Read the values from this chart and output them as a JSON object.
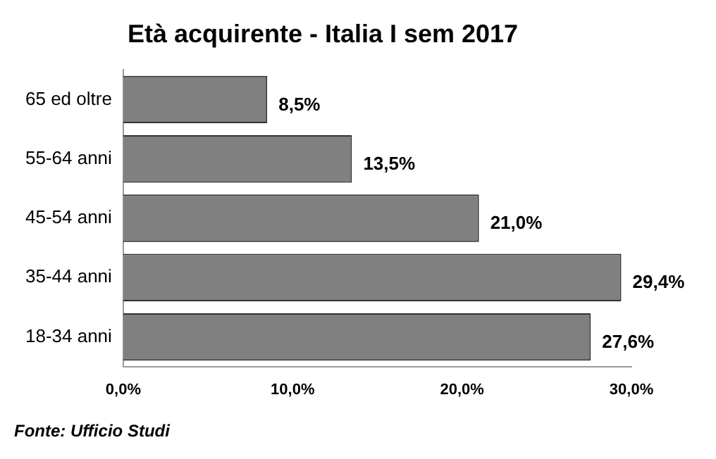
{
  "chart_data": {
    "type": "bar",
    "orientation": "horizontal",
    "title": "Età acquirente - Italia I sem 2017",
    "categories": [
      "65 ed oltre",
      "55-64 anni",
      "45-54 anni",
      "35-44 anni",
      "18-34 anni"
    ],
    "values": [
      8.5,
      13.5,
      21.0,
      29.4,
      27.6
    ],
    "value_labels": [
      "8,5%",
      "13,5%",
      "21,0%",
      "29,4%",
      "27,6%"
    ],
    "color": "#808080",
    "xlim": [
      0,
      30
    ],
    "xticks": [
      {
        "value": 0,
        "label": "0,0%"
      },
      {
        "value": 10,
        "label": "10,0%"
      },
      {
        "value": 20,
        "label": "20,0%"
      },
      {
        "value": 30,
        "label": "30,0%"
      }
    ],
    "grid": false,
    "annotations": [
      "Fonte: Ufficio Studi"
    ]
  }
}
